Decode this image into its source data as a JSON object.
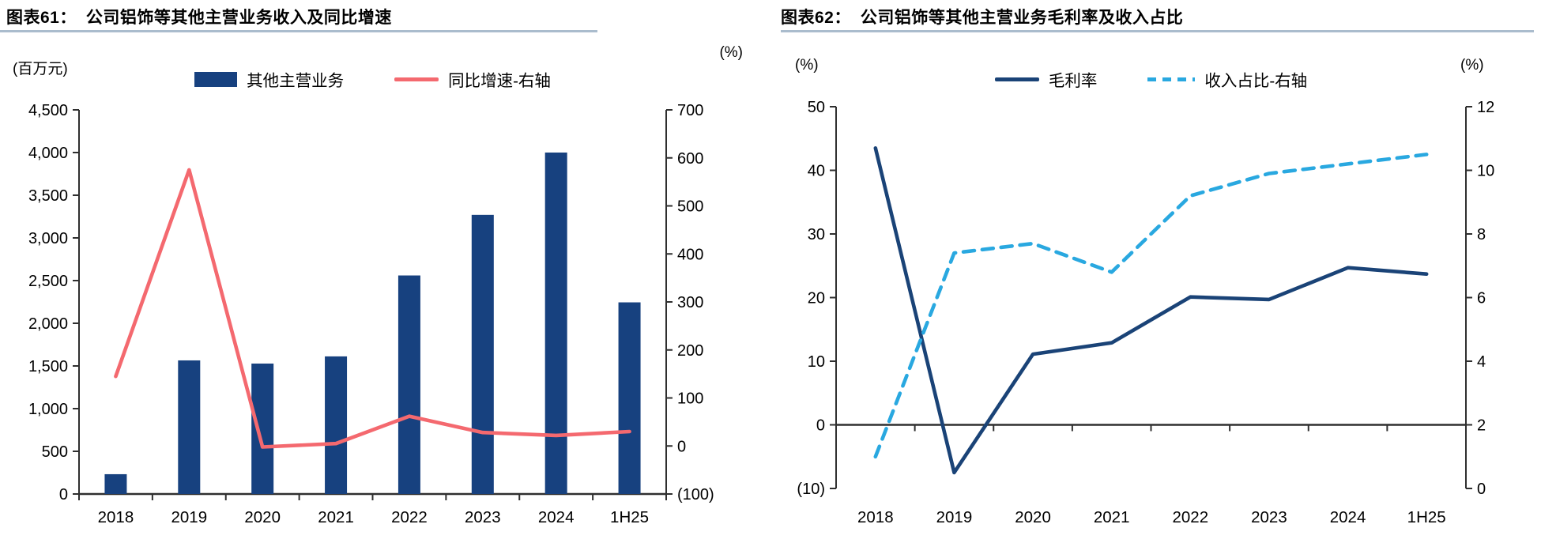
{
  "figures": [
    {
      "title_prefix": "图表61：",
      "title": "公司铝饰等其他主营业务收入及同比增速",
      "left_axis_unit": "(百万元)",
      "right_axis_unit": "(%)",
      "legend": [
        {
          "label": "其他主营业务",
          "swatch": "bar",
          "color": "#17417f"
        },
        {
          "label": "同比增速-右轴",
          "swatch": "line",
          "color": "#f4696f"
        }
      ],
      "chart_data": {
        "type": "bar+line",
        "categories": [
          "2018",
          "2019",
          "2020",
          "2021",
          "2022",
          "2023",
          "2024",
          "1H25"
        ],
        "series": [
          {
            "name": "其他主营业务",
            "type": "bar",
            "axis": "left",
            "color": "#17417f",
            "values": [
              232,
              1565,
              1528,
              1612,
              2560,
              3270,
              4000,
              2245
            ]
          },
          {
            "name": "同比增速-右轴",
            "type": "line",
            "axis": "right",
            "color": "#f4696f",
            "values": [
              145,
              575,
              -2,
              5,
              62,
              28,
              22,
              30
            ]
          }
        ],
        "left_axis": {
          "title": "(百万元)",
          "min": 0,
          "max": 4500,
          "step": 500,
          "labels": [
            "4,500",
            "4,000",
            "3,500",
            "3,000",
            "2,500",
            "2,000",
            "1,500",
            "1,000",
            "500",
            "0"
          ]
        },
        "right_axis": {
          "title": "(%)",
          "min": -100,
          "max": 700,
          "step": 100,
          "labels": [
            "700",
            "600",
            "500",
            "400",
            "300",
            "200",
            "100",
            "0",
            "(100)"
          ]
        },
        "legend_position": "top",
        "grid": false
      }
    },
    {
      "title_prefix": "图表62：",
      "title": "公司铝饰等其他主营业务毛利率及收入占比",
      "left_axis_unit": "(%)",
      "right_axis_unit": "(%)",
      "legend": [
        {
          "label": "毛利率",
          "swatch": "line",
          "color": "#1a4377"
        },
        {
          "label": "收入占比-右轴",
          "swatch": "dashed-line",
          "color": "#29a8e0"
        }
      ],
      "chart_data": {
        "type": "line",
        "categories": [
          "2018",
          "2019",
          "2020",
          "2021",
          "2022",
          "2023",
          "2024",
          "1H25"
        ],
        "series": [
          {
            "name": "毛利率",
            "type": "line",
            "axis": "left",
            "color": "#1a4377",
            "values": [
              43.5,
              -7.5,
              11.1,
              12.9,
              20.1,
              19.7,
              24.7,
              23.7
            ]
          },
          {
            "name": "收入占比-右轴",
            "type": "line",
            "dashed": true,
            "axis": "right",
            "color": "#29a8e0",
            "values": [
              1.0,
              7.4,
              7.7,
              6.8,
              9.2,
              9.9,
              10.2,
              10.5
            ]
          }
        ],
        "left_axis": {
          "title": "(%)",
          "min": -10,
          "max": 50,
          "step": 10,
          "labels": [
            "50",
            "40",
            "30",
            "20",
            "10",
            "0",
            "(10)"
          ]
        },
        "right_axis": {
          "title": "(%)",
          "min": 0,
          "max": 12,
          "step": 2,
          "labels": [
            "12",
            "10",
            "8",
            "6",
            "4",
            "2",
            "0"
          ]
        },
        "legend_position": "top",
        "grid": false
      }
    }
  ]
}
